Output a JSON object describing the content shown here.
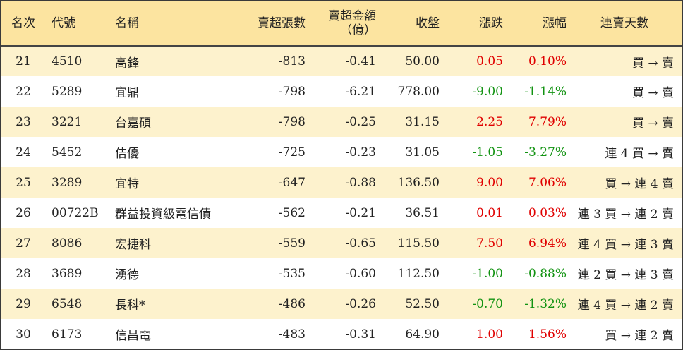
{
  "headers": {
    "rank": "名次",
    "code": "代號",
    "name": "名稱",
    "vol": "賣超張數",
    "amt_line1": "賣超金額",
    "amt_line2": "（億）",
    "close": "收盤",
    "chg": "漲跌",
    "pct": "漲幅",
    "days": "連賣天數"
  },
  "colors": {
    "up": "#e00000",
    "down": "#129312",
    "header_bg": "#fce4a0",
    "stripe_bg": "#fdf2cd"
  },
  "rows": [
    {
      "rank": "21",
      "code": "4510",
      "name": "高鋒",
      "vol": "-813",
      "amt": "-0.41",
      "close": "50.00",
      "chg": "0.05",
      "pct": "0.10%",
      "days": "買 → 賣",
      "dir": "up"
    },
    {
      "rank": "22",
      "code": "5289",
      "name": "宜鼎",
      "vol": "-798",
      "amt": "-6.21",
      "close": "778.00",
      "chg": "-9.00",
      "pct": "-1.14%",
      "days": "買 → 賣",
      "dir": "down"
    },
    {
      "rank": "23",
      "code": "3221",
      "name": "台嘉碩",
      "vol": "-798",
      "amt": "-0.25",
      "close": "31.15",
      "chg": "2.25",
      "pct": "7.79%",
      "days": "買 → 賣",
      "dir": "up"
    },
    {
      "rank": "24",
      "code": "5452",
      "name": "佶優",
      "vol": "-725",
      "amt": "-0.23",
      "close": "31.05",
      "chg": "-1.05",
      "pct": "-3.27%",
      "days": "連 4 買 → 賣",
      "dir": "down"
    },
    {
      "rank": "25",
      "code": "3289",
      "name": "宜特",
      "vol": "-647",
      "amt": "-0.88",
      "close": "136.50",
      "chg": "9.00",
      "pct": "7.06%",
      "days": "買 → 連 4 賣",
      "dir": "up"
    },
    {
      "rank": "26",
      "code": "00722B",
      "name": "群益投資級電信債",
      "vol": "-562",
      "amt": "-0.21",
      "close": "36.51",
      "chg": "0.01",
      "pct": "0.03%",
      "days": "連 3 買 → 連 2 賣",
      "dir": "up"
    },
    {
      "rank": "27",
      "code": "8086",
      "name": "宏捷科",
      "vol": "-559",
      "amt": "-0.65",
      "close": "115.50",
      "chg": "7.50",
      "pct": "6.94%",
      "days": "連 4 買 → 連 3 賣",
      "dir": "up"
    },
    {
      "rank": "28",
      "code": "3689",
      "name": "湧德",
      "vol": "-535",
      "amt": "-0.60",
      "close": "112.50",
      "chg": "-1.00",
      "pct": "-0.88%",
      "days": "連 2 買 → 連 3 賣",
      "dir": "down"
    },
    {
      "rank": "29",
      "code": "6548",
      "name": "長科*",
      "vol": "-486",
      "amt": "-0.26",
      "close": "52.50",
      "chg": "-0.70",
      "pct": "-1.32%",
      "days": "連 4 買 → 連 2 賣",
      "dir": "down"
    },
    {
      "rank": "30",
      "code": "6173",
      "name": "信昌電",
      "vol": "-483",
      "amt": "-0.31",
      "close": "64.90",
      "chg": "1.00",
      "pct": "1.56%",
      "days": "買 → 連 2 賣",
      "dir": "up"
    }
  ]
}
